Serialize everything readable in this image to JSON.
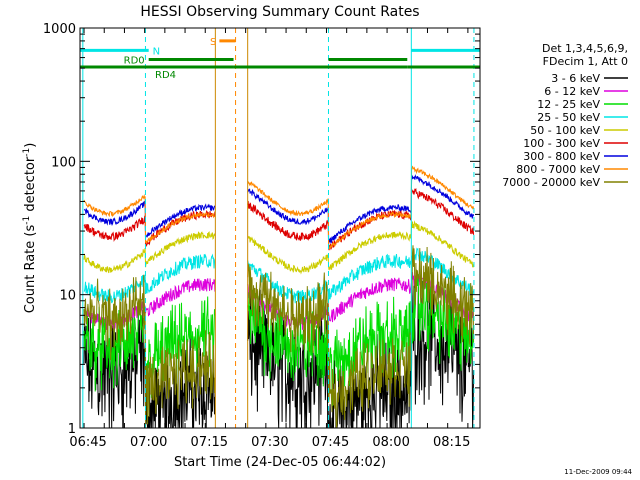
{
  "chart_data": {
    "type": "line",
    "title": "HESSI Observing Summary Count Rates",
    "xlabel": "Start Time (24-Dec-05 06:44:02)",
    "ylabel_main": "Count Rate (s",
    "ylabel_sup1": "-1",
    "ylabel_mid": " detector",
    "ylabel_sup2": "-1",
    "ylabel_end": ")",
    "y_scale": "log",
    "ylim": [
      1,
      1000
    ],
    "xlim_minutes": [
      -1,
      98
    ],
    "x_ticks": [
      {
        "t": 1,
        "label": "06:45"
      },
      {
        "t": 16,
        "label": "07:00"
      },
      {
        "t": 31,
        "label": "07:15"
      },
      {
        "t": 46,
        "label": "07:30"
      },
      {
        "t": 61,
        "label": "07:45"
      },
      {
        "t": 76,
        "label": "08:00"
      },
      {
        "t": 91,
        "label": "08:15"
      }
    ],
    "y_ticks": [
      {
        "v": 1,
        "label": "1"
      },
      {
        "v": 10,
        "label": "10"
      },
      {
        "v": 100,
        "label": "100"
      },
      {
        "v": 1000,
        "label": "1000"
      }
    ],
    "legend_header": [
      "Det 1,3,4,5,6,9,",
      "FDecim 1, Att 0"
    ],
    "timestamp": "11-Dec-2009 09:44",
    "series": [
      {
        "name": "3 - 6 keV",
        "color": "#000000",
        "level": 6,
        "night": 2,
        "saa": 1.5,
        "noise": 0.6
      },
      {
        "name": "6 - 12 keV",
        "color": "#dd00dd",
        "level": 14,
        "night": 12,
        "saa": 12,
        "noise": 0.12
      },
      {
        "name": "12 - 25 keV",
        "color": "#00dd00",
        "level": 9,
        "night": 5,
        "saa": 7,
        "noise": 0.4
      },
      {
        "name": "25 - 50 keV",
        "color": "#00e5e5",
        "level": 22,
        "night": 18,
        "saa": 22,
        "noise": 0.12
      },
      {
        "name": "50 - 100 keV",
        "color": "#cccc00",
        "level": 35,
        "night": 28,
        "saa": 35,
        "noise": 0.06
      },
      {
        "name": "100 - 300 keV",
        "color": "#dd0000",
        "level": 62,
        "night": 40,
        "saa": 75,
        "noise": 0.07
      },
      {
        "name": "300 - 800 keV",
        "color": "#0000dd",
        "level": 80,
        "night": 45,
        "saa": 60,
        "noise": 0.05
      },
      {
        "name": "800 - 7000 keV",
        "color": "#ff8800",
        "level": 92,
        "night": 40,
        "saa": 55,
        "noise": 0.04
      },
      {
        "name": "7000 - 20000 keV",
        "color": "#808000",
        "level": 15,
        "night": 3,
        "saa": 5,
        "noise": 0.35
      }
    ],
    "flags": [
      {
        "label": "N",
        "color": "#00e5e5",
        "y_value": 680,
        "segments": [
          [
            -1,
            16
          ],
          [
            81,
            98
          ]
        ]
      },
      {
        "label": "RD0",
        "color": "#008800",
        "y_value": 580,
        "label_left": true,
        "segments": [
          [
            16,
            37
          ],
          [
            60.5,
            80
          ]
        ]
      },
      {
        "label": "RD4",
        "color": "#008800",
        "y_value": 510,
        "label_below": true,
        "segments": [
          [
            -1,
            37
          ],
          [
            37,
            60.5
          ],
          [
            60.5,
            80
          ],
          [
            80,
            98
          ]
        ]
      },
      {
        "label": "S",
        "color": "#ff8800",
        "y_value": 800,
        "label_left": true,
        "segments": [
          [
            33.5,
            37.5
          ]
        ]
      }
    ],
    "vlines": [
      {
        "t": -0.3,
        "color": "#00e5e5",
        "dashed": false
      },
      {
        "t": 15.2,
        "color": "#00e5e5",
        "dashed": true
      },
      {
        "t": 60.5,
        "color": "#00e5e5",
        "dashed": true
      },
      {
        "t": 81,
        "color": "#00e5e5",
        "dashed": false
      },
      {
        "t": 96.5,
        "color": "#00e5e5",
        "dashed": true
      },
      {
        "t": 32.5,
        "color": "#cc8800",
        "dashed": false
      },
      {
        "t": 37.5,
        "color": "#ff8800",
        "dashed": true
      },
      {
        "t": 40.5,
        "color": "#cc8800",
        "dashed": false
      }
    ],
    "data_gap_minutes": [
      32.5,
      40.5
    ]
  }
}
